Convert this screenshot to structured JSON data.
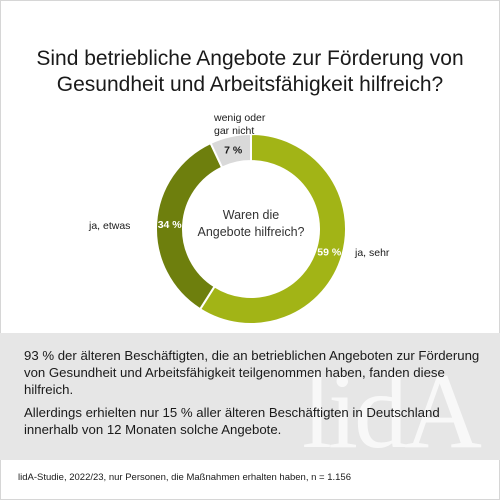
{
  "title": "Sind betriebliche Angebote zur Förderung von Gesundheit und Arbeitsfähigkeit hilfreich?",
  "chart_data": {
    "type": "pie",
    "center_label": [
      "Waren die",
      "Angebote hilfreich?"
    ],
    "slices": [
      {
        "label": "ja, sehr",
        "value": 59,
        "value_label": "59 %",
        "color": "#a2b416"
      },
      {
        "label": "ja, etwas",
        "value": 34,
        "value_label": "34 %",
        "color": "#6e7f0d"
      },
      {
        "label_lines": [
          "wenig oder",
          "gar nicht"
        ],
        "value": 7,
        "value_label": "7 %",
        "color": "#d9d9d9"
      }
    ]
  },
  "summary": {
    "p1": "93 % der älteren Beschäftigten, die an betrieblichen Angeboten zur Förderung von Gesundheit und Arbeitsfähigkeit teilgenommen haben, fanden diese hilfreich.",
    "p2": "Allerdings erhielten nur 15 % aller älteren Beschäftigten in Deutschland innerhalb von 12 Monaten solche Angebote."
  },
  "watermark": "lidA",
  "source": "lidA-Studie, 2022/23, nur Personen, die Maßnahmen erhalten haben, n = 1.156"
}
